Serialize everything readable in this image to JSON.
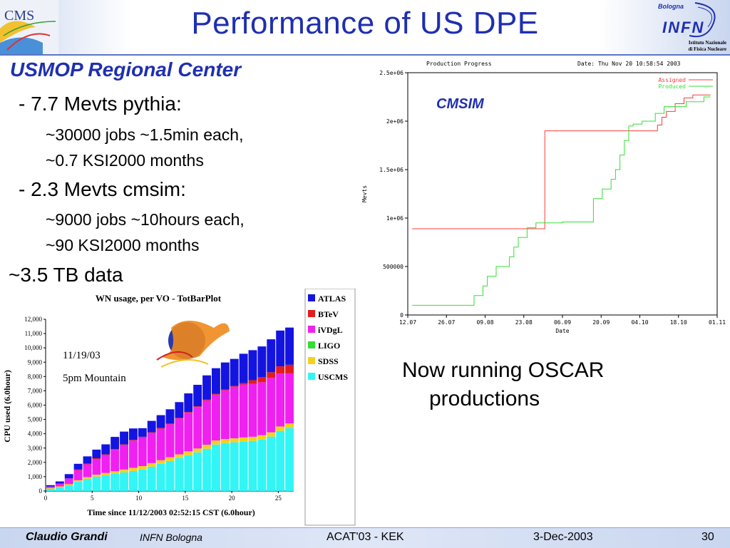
{
  "header": {
    "title": "Performance of US DPE",
    "cms_logo_text": "CMS",
    "infn_logo": {
      "top": "Bologna",
      "main": "INFN",
      "sub1": "Istituto Nazionale",
      "sub2": "di Fisica Nucleare"
    }
  },
  "content": {
    "subtitle": "USMOP Regional Center",
    "bullet1": "-  7.7 Mevts pythia:",
    "bullet1_sub1": "~30000 jobs ~1.5min  each,",
    "bullet1_sub2": "~0.7 KSI2000 months",
    "bullet2": "-  2.3 Mevts cmsim:",
    "bullet2_sub1": "~9000 jobs ~10hours each,",
    "bullet2_sub2": "~90 KSI2000 months",
    "data_total": "~3.5 TB data",
    "oscar_line1": "Now running OSCAR",
    "oscar_line2": "productions"
  },
  "footer": {
    "author": "Claudio Grandi",
    "institution": "INFN Bologna",
    "conference": "ACAT'03 - KEK",
    "date": "3-Dec-2003",
    "page": "30"
  },
  "chart_data": [
    {
      "type": "line",
      "title": "Production Progress",
      "date_text": "Date: Thu Nov 20 10:58:54 2003",
      "annotation": "CMSIM",
      "xlabel": "Date",
      "ylabel": "Mevts",
      "x_ticks": [
        "12.07",
        "26.07",
        "09.08",
        "23.08",
        "06.09",
        "20.09",
        "04.10",
        "18.10",
        "01.11"
      ],
      "y_ticks": [
        "0",
        "500000",
        "1e+06",
        "1.5e+06",
        "2e+06",
        "2.5e+06"
      ],
      "ylim": [
        0,
        2500000
      ],
      "legend_position": "top-right",
      "series": [
        {
          "name": "Assigned",
          "color": "#ff3b3b",
          "x": [
            2,
            60,
            62,
            110,
            113,
            115,
            117,
            119,
            121,
            123,
            125,
            127,
            129,
            131,
            134,
            137
          ],
          "y": [
            890000,
            890000,
            1900000,
            1900000,
            1960000,
            2040000,
            2100000,
            2100000,
            2180000,
            2180000,
            2240000,
            2240000,
            2270000,
            2270000,
            2270000,
            2270000
          ]
        },
        {
          "name": "Produced",
          "color": "#32e032",
          "x": [
            2,
            26,
            30,
            32,
            34,
            36,
            40,
            44,
            46,
            48,
            50,
            54,
            56,
            58,
            60,
            62,
            64,
            66,
            68,
            70,
            80,
            84,
            88,
            92,
            94,
            96,
            98,
            100,
            102,
            106,
            108,
            112,
            114,
            116,
            122,
            126,
            130,
            134,
            137
          ],
          "y": [
            100000,
            100000,
            200000,
            200000,
            300000,
            400000,
            500000,
            500000,
            600000,
            700000,
            800000,
            900000,
            900000,
            950000,
            950000,
            950000,
            950000,
            950000,
            950000,
            960000,
            960000,
            1200000,
            1300000,
            1400000,
            1500000,
            1650000,
            1800000,
            1950000,
            1970000,
            2000000,
            2000000,
            2080000,
            2080000,
            2150000,
            2150000,
            2200000,
            2200000,
            2250000,
            2250000
          ]
        }
      ]
    },
    {
      "type": "bar",
      "stacked": true,
      "title": "WN usage, per VO - TotBarPlot",
      "annotation_date": "11/19/03",
      "annotation_time": "5pm Mountain",
      "xlabel": "Time since 11/12/2003 02:52:15 CST (6.0hour)",
      "ylabel": "CPU used (6.0hour)",
      "ylim": [
        0,
        12000
      ],
      "y_ticks": [
        "0",
        "1,000",
        "2,000",
        "3,000",
        "4,000",
        "5,000",
        "6,000",
        "7,000",
        "8,000",
        "9,000",
        "10,000",
        "11,000",
        "12,000"
      ],
      "x_ticks": [
        "0",
        "5",
        "10",
        "15",
        "20",
        "25"
      ],
      "legend_position": "right",
      "categories": [
        1,
        2,
        3,
        4,
        5,
        6,
        7,
        8,
        9,
        10,
        11,
        12,
        13,
        14,
        15,
        16,
        17,
        18,
        19,
        20,
        21,
        22,
        23,
        24,
        25,
        26,
        27
      ],
      "series": [
        {
          "name": "USCMS",
          "color": "#33f5f5",
          "values": [
            150,
            250,
            400,
            650,
            850,
            1000,
            1100,
            1200,
            1300,
            1400,
            1500,
            1700,
            1900,
            2100,
            2300,
            2500,
            2700,
            2950,
            3250,
            3350,
            3400,
            3450,
            3500,
            3600,
            3800,
            4200,
            4400
          ]
        },
        {
          "name": "SDSS",
          "color": "#f5d020",
          "values": [
            60,
            70,
            80,
            100,
            120,
            140,
            160,
            180,
            200,
            220,
            240,
            250,
            250,
            260,
            260,
            270,
            270,
            280,
            280,
            280,
            280,
            290,
            290,
            300,
            300,
            310,
            320
          ]
        },
        {
          "name": "LIGO",
          "color": "#33dd33",
          "values": [
            0,
            0,
            0,
            0,
            0,
            0,
            0,
            0,
            0,
            0,
            0,
            0,
            0,
            0,
            0,
            0,
            0,
            0,
            0,
            0,
            0,
            0,
            0,
            0,
            0,
            0,
            0
          ]
        },
        {
          "name": "iVDgL",
          "color": "#f020f0",
          "values": [
            100,
            200,
            400,
            700,
            900,
            1100,
            1250,
            1500,
            1700,
            1900,
            2000,
            2100,
            2200,
            2300,
            2500,
            2700,
            2900,
            3100,
            3200,
            3400,
            3600,
            3700,
            3700,
            3700,
            3800,
            3700,
            3500
          ]
        },
        {
          "name": "BTeV",
          "color": "#e51c1c",
          "values": [
            0,
            0,
            0,
            50,
            50,
            50,
            50,
            50,
            50,
            50,
            50,
            50,
            50,
            50,
            50,
            50,
            50,
            50,
            50,
            50,
            50,
            100,
            250,
            350,
            400,
            500,
            600
          ]
        },
        {
          "name": "ATLAS",
          "color": "#1414e0",
          "values": [
            100,
            150,
            300,
            400,
            500,
            600,
            700,
            850,
            900,
            800,
            600,
            800,
            900,
            1000,
            1100,
            1300,
            1500,
            1700,
            1800,
            1900,
            1900,
            2050,
            2100,
            2150,
            2300,
            2500,
            2600
          ]
        }
      ]
    }
  ]
}
